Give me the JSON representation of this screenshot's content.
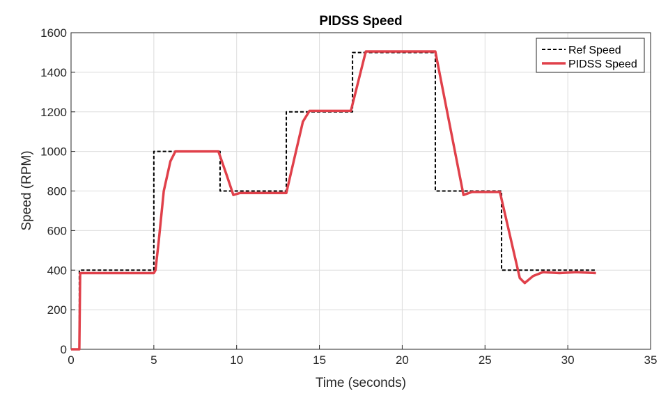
{
  "chart_data": {
    "type": "line",
    "title": "PIDSS Speed",
    "xlabel": "Time (seconds)",
    "ylabel": "Speed (RPM)",
    "xlim": [
      0,
      35
    ],
    "ylim": [
      0,
      1600
    ],
    "xticks": [
      0,
      5,
      10,
      15,
      20,
      25,
      30,
      35
    ],
    "yticks": [
      0,
      200,
      400,
      600,
      800,
      1000,
      1200,
      1400,
      1600
    ],
    "grid": true,
    "legend_position": "top-right",
    "series": [
      {
        "name": "Ref Speed",
        "style": "dashed",
        "color": "#000000",
        "x": [
          0,
          0.5,
          0.5,
          5,
          5,
          9,
          9,
          13,
          13,
          17,
          17,
          22,
          22,
          26,
          26,
          31.7
        ],
        "y": [
          0,
          0,
          400,
          400,
          1000,
          1000,
          800,
          800,
          1200,
          1200,
          1500,
          1500,
          800,
          800,
          400,
          400
        ]
      },
      {
        "name": "PIDSS Speed",
        "style": "solid",
        "color": "#e0404a",
        "x": [
          0,
          0.5,
          0.55,
          5.0,
          5.1,
          5.3,
          5.6,
          6.0,
          6.3,
          7.0,
          8.0,
          8.9,
          9.4,
          9.8,
          10.2,
          13.0,
          14.0,
          14.4,
          16.9,
          17.8,
          18.2,
          22.0,
          23.7,
          24.2,
          25.9,
          27.1,
          27.4,
          27.9,
          28.5,
          29.5,
          30.5,
          31.7
        ],
        "y": [
          0,
          0,
          385,
          385,
          400,
          550,
          800,
          950,
          1000,
          1000,
          1000,
          1000,
          880,
          780,
          790,
          790,
          1150,
          1205,
          1205,
          1505,
          1505,
          1505,
          780,
          795,
          795,
          360,
          335,
          370,
          390,
          385,
          390,
          385
        ]
      }
    ]
  }
}
